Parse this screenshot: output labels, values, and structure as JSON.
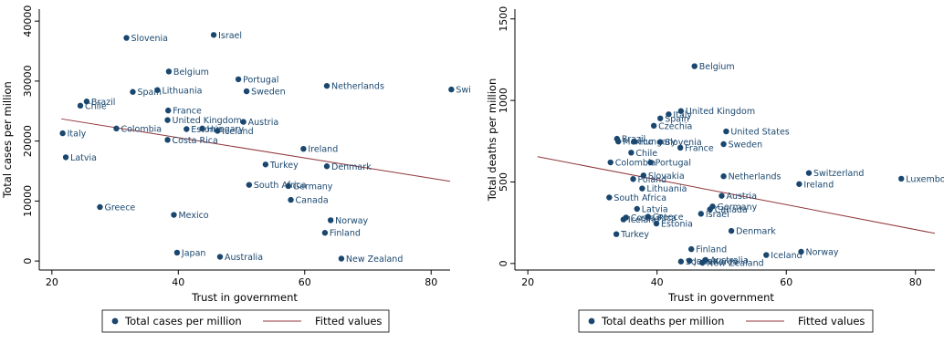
{
  "colors": {
    "points": "#1a476f",
    "fit_line": "#90353b",
    "axis": "#000000"
  },
  "chart_data": [
    {
      "type": "scatter",
      "xlabel": "Trust in government",
      "ylabel": "Total cases per million",
      "xlim": [
        18,
        83
      ],
      "ylim": [
        -1500,
        42000
      ],
      "xticks": [
        20,
        40,
        60,
        80
      ],
      "yticks": [
        0,
        10000,
        20000,
        30000,
        40000
      ],
      "grid": false,
      "legend_position": "bottom",
      "legend": [
        "Total cases per million",
        "Fitted values"
      ],
      "series": [
        {
          "name": "Total cases per million",
          "points": [
            {
              "label": "Slovenia",
              "x": 31.8,
              "y": 37200
            },
            {
              "label": "Israel",
              "x": 45.6,
              "y": 37700
            },
            {
              "label": "Belgium",
              "x": 38.5,
              "y": 31600
            },
            {
              "label": "Portugal",
              "x": 49.5,
              "y": 30300
            },
            {
              "label": "Netherlands",
              "x": 63.5,
              "y": 29200
            },
            {
              "label": "Spain",
              "x": 32.8,
              "y": 28200
            },
            {
              "label": "Lithuania",
              "x": 36.7,
              "y": 28500
            },
            {
              "label": "Sweden",
              "x": 50.8,
              "y": 28300
            },
            {
              "label": "Swi",
              "x": 83.2,
              "y": 28600
            },
            {
              "label": "Brazil",
              "x": 25.5,
              "y": 26600
            },
            {
              "label": "Chile",
              "x": 24.5,
              "y": 25900
            },
            {
              "label": "France",
              "x": 38.4,
              "y": 25100
            },
            {
              "label": "United Kingdom",
              "x": 38.3,
              "y": 23500
            },
            {
              "label": "Austria",
              "x": 50.3,
              "y": 23200
            },
            {
              "label": "Colombia",
              "x": 30.2,
              "y": 22100
            },
            {
              "label": "Estonia",
              "x": 41.3,
              "y": 22000
            },
            {
              "label": "Hungary",
              "x": 43.8,
              "y": 22100
            },
            {
              "label": "Iceland",
              "x": 46.2,
              "y": 21700
            },
            {
              "label": "Italy",
              "x": 21.7,
              "y": 21300
            },
            {
              "label": "Costa Rica",
              "x": 38.3,
              "y": 20200
            },
            {
              "label": "Ireland",
              "x": 59.8,
              "y": 18700
            },
            {
              "label": "Latvia",
              "x": 22.2,
              "y": 17300
            },
            {
              "label": "Turkey",
              "x": 53.8,
              "y": 16100
            },
            {
              "label": "Denmark",
              "x": 63.5,
              "y": 15800
            },
            {
              "label": "South Africa",
              "x": 51.2,
              "y": 12700
            },
            {
              "label": "Germany",
              "x": 57.4,
              "y": 12500
            },
            {
              "label": "Canada",
              "x": 57.8,
              "y": 10200
            },
            {
              "label": "Greece",
              "x": 27.6,
              "y": 9000
            },
            {
              "label": "Mexico",
              "x": 39.3,
              "y": 7700
            },
            {
              "label": "Norway",
              "x": 64.1,
              "y": 6800
            },
            {
              "label": "Finland",
              "x": 63.2,
              "y": 4700
            },
            {
              "label": "Japan",
              "x": 39.8,
              "y": 1400
            },
            {
              "label": "Australia",
              "x": 46.6,
              "y": 700
            },
            {
              "label": "New Zealand",
              "x": 65.8,
              "y": 400
            }
          ]
        },
        {
          "name": "Fitted values",
          "line": {
            "x": [
              21.5,
              83
            ],
            "y": [
              23700,
              13300
            ]
          }
        }
      ]
    },
    {
      "type": "scatter",
      "xlabel": "Trust in government",
      "ylabel": "Total deaths per million",
      "xlim": [
        18,
        83
      ],
      "ylim": [
        -40,
        1560
      ],
      "xticks": [
        20,
        40,
        60,
        80
      ],
      "yticks": [
        0,
        500,
        1000,
        1500
      ],
      "grid": false,
      "legend_position": "bottom",
      "legend": [
        "Total deaths per million",
        "Fitted values"
      ],
      "series": [
        {
          "name": "Total deaths per million",
          "points": [
            {
              "label": "Belgium",
              "x": 45.8,
              "y": 1210
            },
            {
              "label": "United Kingdom",
              "x": 43.7,
              "y": 935
            },
            {
              "label": "Italy",
              "x": 41.8,
              "y": 915
            },
            {
              "label": "Spain",
              "x": 40.5,
              "y": 890
            },
            {
              "label": "Czechia",
              "x": 39.5,
              "y": 845
            },
            {
              "label": "United States",
              "x": 50.7,
              "y": 810
            },
            {
              "label": "Brazil",
              "x": 33.8,
              "y": 765
            },
            {
              "label": "Mexico",
              "x": 34.0,
              "y": 748
            },
            {
              "label": "Hungary",
              "x": 36.5,
              "y": 748
            },
            {
              "label": "Slovenia",
              "x": 40.5,
              "y": 745
            },
            {
              "label": "Sweden",
              "x": 50.3,
              "y": 732
            },
            {
              "label": "France",
              "x": 43.6,
              "y": 710
            },
            {
              "label": "Chile",
              "x": 36.0,
              "y": 680
            },
            {
              "label": "Colombia",
              "x": 32.8,
              "y": 620
            },
            {
              "label": "Portugal",
              "x": 39.0,
              "y": 620
            },
            {
              "label": "Switzerland",
              "x": 63.5,
              "y": 555
            },
            {
              "label": "Slovakia",
              "x": 37.9,
              "y": 540
            },
            {
              "label": "Netherlands",
              "x": 50.3,
              "y": 535
            },
            {
              "label": "Luxembourg",
              "x": 77.8,
              "y": 520
            },
            {
              "label": "Poland",
              "x": 36.3,
              "y": 518
            },
            {
              "label": "Ireland",
              "x": 62.0,
              "y": 487
            },
            {
              "label": "Lithuania",
              "x": 37.7,
              "y": 460
            },
            {
              "label": "Austria",
              "x": 50.0,
              "y": 415
            },
            {
              "label": "South Africa",
              "x": 32.6,
              "y": 405
            },
            {
              "label": "Germany",
              "x": 48.6,
              "y": 350
            },
            {
              "label": "Canada",
              "x": 48.2,
              "y": 332
            },
            {
              "label": "Latvia",
              "x": 36.9,
              "y": 335
            },
            {
              "label": "Israel",
              "x": 46.8,
              "y": 305
            },
            {
              "label": "Greece",
              "x": 38.6,
              "y": 287
            },
            {
              "label": "Costa Rica",
              "x": 35.2,
              "y": 282
            },
            {
              "label": "Iceland2",
              "x": 34.8,
              "y": 270
            },
            {
              "label": "Estonia",
              "x": 39.9,
              "y": 245
            },
            {
              "label": "Denmark",
              "x": 51.5,
              "y": 200
            },
            {
              "label": "Turkey",
              "x": 33.7,
              "y": 180
            },
            {
              "label": "Finland",
              "x": 45.3,
              "y": 88
            },
            {
              "label": "Norway",
              "x": 62.3,
              "y": 72
            },
            {
              "label": "Iceland",
              "x": 56.9,
              "y": 52
            },
            {
              "label": "Japan",
              "x": 45.0,
              "y": 17
            },
            {
              "label": "Australia",
              "x": 47.5,
              "y": 22
            },
            {
              "label": "South Korea",
              "x": 43.7,
              "y": 12
            },
            {
              "label": "New Zealand",
              "x": 47.0,
              "y": 5
            }
          ]
        },
        {
          "name": "Fitted values",
          "line": {
            "x": [
              21.5,
              83
            ],
            "y": [
              655,
              185
            ]
          }
        }
      ]
    }
  ]
}
